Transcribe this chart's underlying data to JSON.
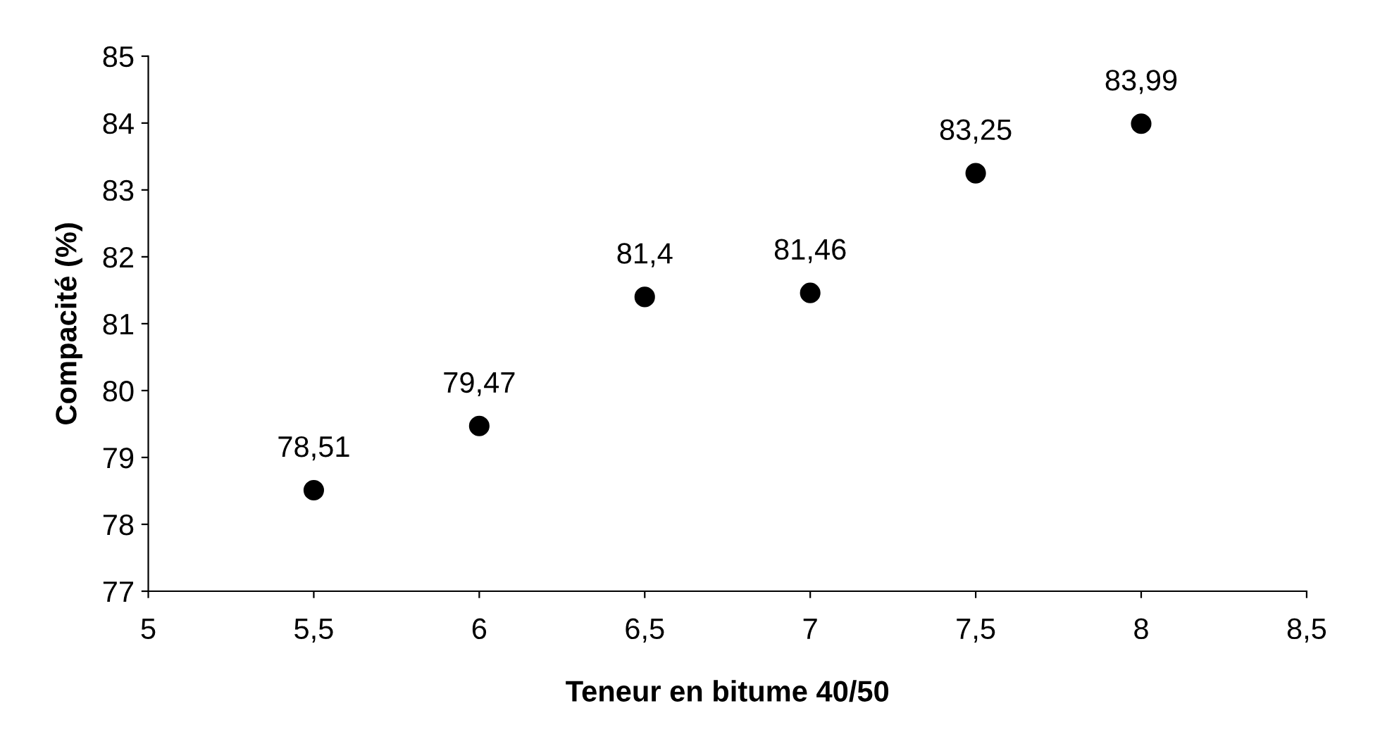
{
  "chart_data": {
    "type": "scatter",
    "xlabel": "Teneur en bitume 40/50",
    "ylabel": "Compacité (%)",
    "x": [
      5.5,
      6,
      6.5,
      7,
      7.5,
      8
    ],
    "series": [
      {
        "color": "#000000",
        "values": [
          78.51,
          79.47,
          81.4,
          81.46,
          83.25,
          83.99
        ],
        "value_labels": [
          "78,51",
          "79,47",
          "81,4",
          "81,46",
          "83,25",
          "83,99"
        ]
      }
    ],
    "xlim": [
      5,
      8.5
    ],
    "xticks": [
      5,
      {
        "value": 5.5,
        "label": "5,5"
      },
      6,
      {
        "value": 6.5,
        "label": "6,5"
      },
      7,
      {
        "value": 7.5,
        "label": "7,5"
      },
      8,
      {
        "value": 8.5,
        "label": "8,5"
      }
    ],
    "ylim": [
      77,
      85
    ],
    "yticks": [
      77,
      78,
      79,
      80,
      81,
      82,
      83,
      84,
      85
    ],
    "marker": "circle",
    "grid": false,
    "legend": false
  }
}
